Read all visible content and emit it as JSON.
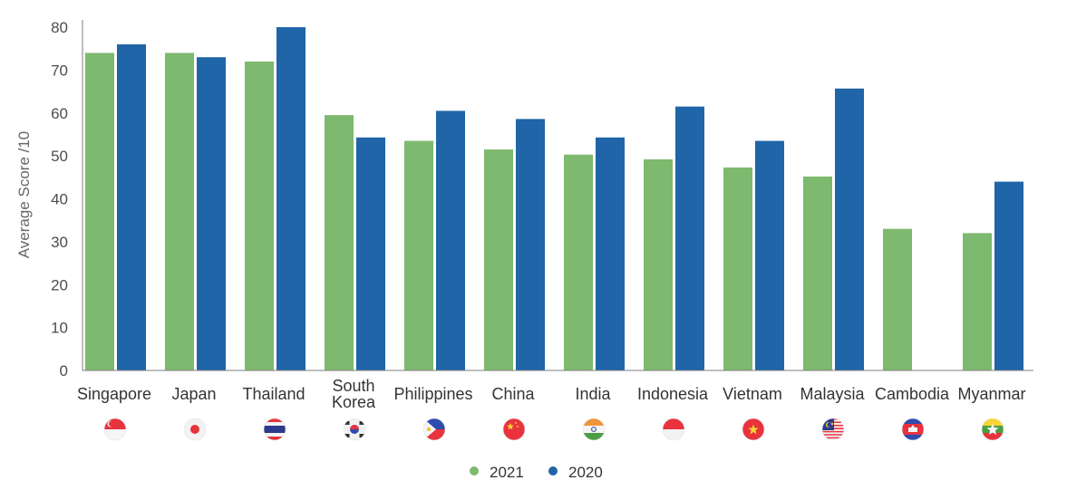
{
  "chart_data": {
    "type": "bar",
    "ylabel": "Average Score /10",
    "xlabel": "",
    "title": "",
    "ylim": [
      0,
      80
    ],
    "yticks": [
      0,
      10,
      20,
      30,
      40,
      50,
      60,
      70,
      80
    ],
    "grid": false,
    "legend_position": "bottom-center",
    "categories": [
      {
        "label": [
          "Singapore"
        ],
        "flag": "singapore-flag-icon"
      },
      {
        "label": [
          "Japan"
        ],
        "flag": "japan-flag-icon"
      },
      {
        "label": [
          "Thailand"
        ],
        "flag": "thailand-flag-icon"
      },
      {
        "label": [
          "South",
          "Korea"
        ],
        "flag": "south-korea-flag-icon"
      },
      {
        "label": [
          "Philippines"
        ],
        "flag": "philippines-flag-icon"
      },
      {
        "label": [
          "China"
        ],
        "flag": "china-flag-icon"
      },
      {
        "label": [
          "India"
        ],
        "flag": "india-flag-icon"
      },
      {
        "label": [
          "Indonesia"
        ],
        "flag": "indonesia-flag-icon"
      },
      {
        "label": [
          "Vietnam"
        ],
        "flag": "vietnam-flag-icon"
      },
      {
        "label": [
          "Malaysia"
        ],
        "flag": "malaysia-flag-icon"
      },
      {
        "label": [
          "Cambodia"
        ],
        "flag": "cambodia-flag-icon"
      },
      {
        "label": [
          "Myanmar"
        ],
        "flag": "myanmar-flag-icon"
      }
    ],
    "series": [
      {
        "name": "2021",
        "color": "#7db96e",
        "values": [
          74,
          74,
          72,
          59.5,
          53.5,
          51.5,
          50.3,
          49.2,
          47.3,
          45.2,
          33,
          32
        ]
      },
      {
        "name": "2020",
        "color": "#1f65a8",
        "values": [
          76,
          73,
          80,
          54.3,
          60.5,
          58.6,
          54.3,
          61.5,
          53.5,
          65.7,
          null,
          44
        ]
      }
    ]
  }
}
